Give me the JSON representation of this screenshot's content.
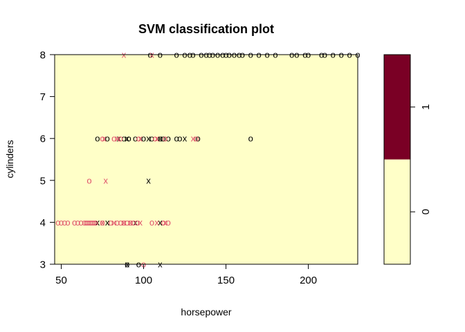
{
  "chart_data": {
    "type": "scatter",
    "title": "SVM classification plot",
    "xlabel": "horsepower",
    "ylabel": "cylinders",
    "xlim": [
      46,
      230
    ],
    "ylim": [
      3,
      8
    ],
    "x_ticks": [
      50,
      100,
      150,
      200
    ],
    "y_ticks": [
      3,
      4,
      5,
      6,
      7,
      8
    ],
    "background_region_class": "0",
    "colors": {
      "region_0": "#FFFFC8",
      "region_1": "#7A0025",
      "class_black": "#000000",
      "class_pink": "#DF536B"
    },
    "legend": {
      "placement": "right",
      "levels": [
        "0",
        "1"
      ],
      "split_fraction": 0.5
    },
    "series": [
      {
        "color": "class_black",
        "symbol": "o",
        "points": [
          [
            104,
            8
          ],
          [
            110,
            8
          ],
          [
            120,
            8
          ],
          [
            125,
            8
          ],
          [
            128,
            8
          ],
          [
            130,
            8
          ],
          [
            135,
            8
          ],
          [
            138,
            8
          ],
          [
            140,
            8
          ],
          [
            142,
            8
          ],
          [
            145,
            8
          ],
          [
            148,
            8
          ],
          [
            150,
            8
          ],
          [
            152,
            8
          ],
          [
            155,
            8
          ],
          [
            158,
            8
          ],
          [
            160,
            8
          ],
          [
            165,
            8
          ],
          [
            170,
            8
          ],
          [
            175,
            8
          ],
          [
            180,
            8
          ],
          [
            190,
            8
          ],
          [
            193,
            8
          ],
          [
            198,
            8
          ],
          [
            200,
            8
          ],
          [
            208,
            8
          ],
          [
            210,
            8
          ],
          [
            215,
            8
          ],
          [
            220,
            8
          ],
          [
            225,
            8
          ],
          [
            230,
            8
          ],
          [
            72,
            6
          ],
          [
            78,
            6
          ],
          [
            88,
            6
          ],
          [
            91,
            6
          ],
          [
            95,
            6
          ],
          [
            100,
            6
          ],
          [
            105,
            6
          ],
          [
            110,
            6
          ],
          [
            112,
            6
          ],
          [
            115,
            6
          ],
          [
            120,
            6
          ],
          [
            122,
            6
          ],
          [
            133,
            6
          ],
          [
            165,
            6
          ],
          [
            90,
            3
          ],
          [
            97,
            3
          ]
        ]
      },
      {
        "color": "class_black",
        "symbol": "x",
        "points": [
          [
            85,
            6
          ],
          [
            90,
            6
          ],
          [
            103,
            6
          ],
          [
            110,
            6
          ],
          [
            125,
            6
          ],
          [
            103,
            5
          ],
          [
            72,
            4
          ],
          [
            78,
            4
          ],
          [
            95,
            4
          ],
          [
            110,
            4
          ],
          [
            90,
            3
          ],
          [
            110,
            3
          ]
        ]
      },
      {
        "color": "class_pink",
        "symbol": "o",
        "points": [
          [
            75,
            6
          ],
          [
            82,
            6
          ],
          [
            86,
            6
          ],
          [
            97,
            6
          ],
          [
            107,
            6
          ],
          [
            113,
            6
          ],
          [
            132,
            6
          ],
          [
            67,
            5
          ],
          [
            48,
            4
          ],
          [
            50,
            4
          ],
          [
            52,
            4
          ],
          [
            54,
            4
          ],
          [
            58,
            4
          ],
          [
            60,
            4
          ],
          [
            62,
            4
          ],
          [
            64,
            4
          ],
          [
            65,
            4
          ],
          [
            66,
            4
          ],
          [
            67,
            4
          ],
          [
            68,
            4
          ],
          [
            69,
            4
          ],
          [
            70,
            4
          ],
          [
            71,
            4
          ],
          [
            75,
            4
          ],
          [
            80,
            4
          ],
          [
            84,
            4
          ],
          [
            86,
            4
          ],
          [
            88,
            4
          ],
          [
            90,
            4
          ],
          [
            92,
            4
          ],
          [
            94,
            4
          ],
          [
            96,
            4
          ],
          [
            105,
            4
          ],
          [
            112,
            4
          ],
          [
            115,
            4
          ],
          [
            100,
            3
          ]
        ]
      },
      {
        "color": "class_pink",
        "symbol": "x",
        "points": [
          [
            88,
            8
          ],
          [
            105,
            8
          ],
          [
            76,
            6
          ],
          [
            84,
            6
          ],
          [
            98,
            6
          ],
          [
            108,
            6
          ],
          [
            130,
            6
          ],
          [
            77,
            5
          ],
          [
            75,
            4
          ],
          [
            82,
            4
          ],
          [
            88,
            4
          ],
          [
            92,
            4
          ],
          [
            98,
            4
          ],
          [
            108,
            4
          ],
          [
            113,
            4
          ]
        ]
      }
    ]
  }
}
